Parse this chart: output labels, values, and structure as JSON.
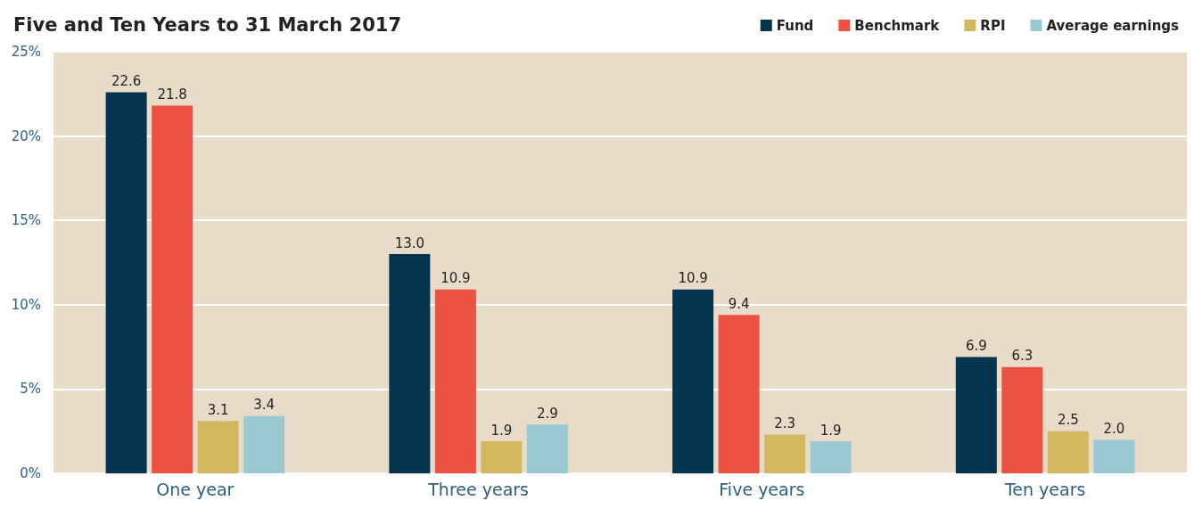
{
  "chart_data": {
    "type": "bar",
    "title": "Five and Ten Years to 31 March 2017",
    "categories": [
      "One year",
      "Three years",
      "Five years",
      "Ten years"
    ],
    "series": [
      {
        "name": "Fund",
        "color": "#05344f",
        "values": [
          22.6,
          13.0,
          10.9,
          6.9
        ],
        "value_labels": [
          "22.6",
          "13.0",
          "10.9",
          "6.9"
        ]
      },
      {
        "name": "Benchmark",
        "color": "#eb5244",
        "values": [
          21.8,
          10.9,
          9.4,
          6.3
        ],
        "value_labels": [
          "21.8",
          "10.9",
          "9.4",
          "6.3"
        ]
      },
      {
        "name": "RPI",
        "color": "#d4b860",
        "values": [
          3.1,
          1.9,
          2.3,
          2.5
        ],
        "value_labels": [
          "3.1",
          "1.9",
          "2.3",
          "2.5"
        ]
      },
      {
        "name": "Average earnings",
        "color": "#9ac8d3",
        "values": [
          3.4,
          2.9,
          1.9,
          2.0
        ],
        "value_labels": [
          "3.4",
          "2.9",
          "1.9",
          "2.0"
        ]
      }
    ],
    "ylim": [
      0,
      25
    ],
    "yticks": [
      {
        "value": 0,
        "label": "0%"
      },
      {
        "value": 5,
        "label": "5%"
      },
      {
        "value": 10,
        "label": "10%"
      },
      {
        "value": 15,
        "label": "15%"
      },
      {
        "value": 20,
        "label": "20%"
      },
      {
        "value": 25,
        "label": "25%"
      }
    ],
    "grid": "y",
    "legend": "top right"
  }
}
